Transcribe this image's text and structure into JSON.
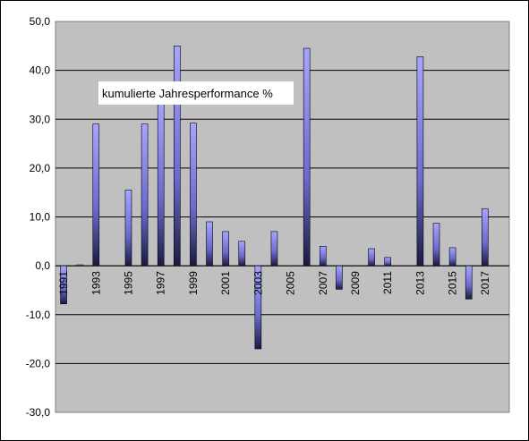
{
  "chart_data": {
    "type": "bar",
    "title": "kumulierte Jahresperformance %",
    "xlabel": "",
    "ylabel": "",
    "ylim": [
      -30,
      50
    ],
    "yticks": [
      "50,0",
      "40,0",
      "30,0",
      "20,0",
      "10,0",
      "0,0",
      "-10,0",
      "-20,0",
      "-30,0"
    ],
    "grid": true,
    "categories": [
      "1991",
      "1992",
      "1993",
      "1994",
      "1995",
      "1996",
      "1997",
      "1998",
      "1999",
      "2000",
      "2001",
      "2002",
      "2003",
      "2004",
      "2005",
      "2006",
      "2007",
      "2008",
      "2009",
      "2010",
      "2011",
      "2012",
      "2013",
      "2014",
      "2015",
      "2016",
      "2017"
    ],
    "xtick_labels": [
      "1991",
      "1993",
      "1995",
      "1997",
      "1999",
      "2001",
      "2003",
      "2005",
      "2007",
      "2009",
      "2011",
      "2013",
      "2015",
      "2017"
    ],
    "values": [
      -7.8,
      0.2,
      29.0,
      0,
      15.5,
      29.0,
      34.0,
      45.0,
      29.2,
      9.0,
      7.0,
      5.0,
      -17.0,
      7.0,
      0,
      44.5,
      4.0,
      -4.8,
      0,
      3.5,
      1.7,
      0,
      42.8,
      8.7,
      3.7,
      -6.8,
      11.7
    ],
    "colors": {
      "plot_bg": "#c0c0c0",
      "bar_top": "#9999ff",
      "bar_bottom": "#1a1a40",
      "grid": "#000000"
    }
  }
}
